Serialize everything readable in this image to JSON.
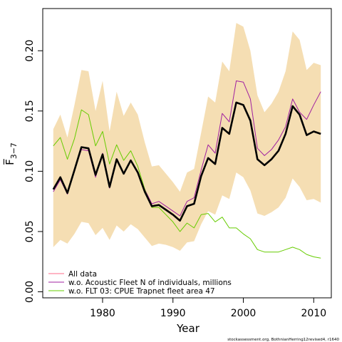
{
  "chart_data": {
    "type": "line",
    "xlabel": "Year",
    "ylabel": "F̅",
    "ylabel_sub": "3−7",
    "xlim": [
      1971.5,
      2012.5
    ],
    "ylim": [
      -0.005,
      0.235
    ],
    "x_ticks": [
      1980,
      1990,
      2000,
      2010
    ],
    "x_tick_labels": [
      "1980",
      "1990",
      "2000",
      "2010"
    ],
    "y_ticks": [
      0.0,
      0.05,
      0.1,
      0.15,
      0.2
    ],
    "y_tick_labels": [
      "0.00",
      "0.05",
      "0.10",
      "0.15",
      "0.20"
    ],
    "grid": false,
    "legend_position": "bottom-left",
    "footnote": "stockassessment.org, BothnianHerring12revised4, r1640",
    "x": [
      1973,
      1974,
      1975,
      1976,
      1977,
      1978,
      1979,
      1980,
      1981,
      1982,
      1983,
      1984,
      1985,
      1986,
      1987,
      1988,
      1989,
      1990,
      1991,
      1992,
      1993,
      1994,
      1995,
      1996,
      1997,
      1998,
      1999,
      2000,
      2001,
      2002,
      2003,
      2004,
      2005,
      2006,
      2007,
      2008,
      2009,
      2010,
      2011
    ],
    "band": {
      "color": "#f5deb3",
      "upper": [
        0.135,
        0.147,
        0.128,
        0.155,
        0.184,
        0.183,
        0.15,
        0.175,
        0.133,
        0.166,
        0.146,
        0.157,
        0.147,
        0.124,
        0.104,
        0.105,
        0.098,
        0.091,
        0.083,
        0.099,
        0.102,
        0.132,
        0.162,
        0.157,
        0.191,
        0.183,
        0.223,
        0.22,
        0.2,
        0.163,
        0.149,
        0.156,
        0.166,
        0.183,
        0.216,
        0.209,
        0.184,
        0.19,
        0.188
      ],
      "lower": [
        0.037,
        0.043,
        0.04,
        0.048,
        0.058,
        0.057,
        0.047,
        0.053,
        0.043,
        0.055,
        0.05,
        0.056,
        0.052,
        0.045,
        0.038,
        0.04,
        0.039,
        0.037,
        0.034,
        0.041,
        0.042,
        0.056,
        0.067,
        0.064,
        0.08,
        0.077,
        0.099,
        0.095,
        0.084,
        0.065,
        0.063,
        0.066,
        0.07,
        0.078,
        0.094,
        0.087,
        0.076,
        0.077,
        0.074
      ]
    },
    "series": [
      {
        "name": "All data",
        "color": "#ff6b8a",
        "width": 1,
        "values": [
          0.085,
          0.095,
          0.082,
          0.101,
          0.12,
          0.119,
          0.097,
          0.114,
          0.087,
          0.11,
          0.098,
          0.109,
          0.099,
          0.083,
          0.071,
          0.072,
          0.068,
          0.064,
          0.059,
          0.071,
          0.073,
          0.096,
          0.111,
          0.106,
          0.136,
          0.131,
          0.157,
          0.155,
          0.142,
          0.11,
          0.105,
          0.11,
          0.117,
          0.131,
          0.154,
          0.147,
          0.13,
          0.133,
          0.131
        ]
      },
      {
        "name": "w.o. Acoustic Fleet  N of individuals, millions",
        "color": "#a020a0",
        "width": 1,
        "values": [
          0.083,
          0.093,
          0.081,
          0.101,
          0.118,
          0.117,
          0.095,
          0.115,
          0.086,
          0.11,
          0.098,
          0.109,
          0.098,
          0.085,
          0.073,
          0.075,
          0.071,
          0.067,
          0.063,
          0.075,
          0.078,
          0.101,
          0.122,
          0.115,
          0.148,
          0.141,
          0.175,
          0.174,
          0.16,
          0.119,
          0.113,
          0.118,
          0.126,
          0.137,
          0.16,
          0.149,
          0.143,
          0.155,
          0.166
        ]
      },
      {
        "name": "w.o. FLT 03: CPUE Trapnet fleet area 47",
        "color": "#66cc00",
        "width": 1,
        "values": [
          0.121,
          0.128,
          0.11,
          0.127,
          0.151,
          0.147,
          0.121,
          0.133,
          0.106,
          0.122,
          0.109,
          0.117,
          0.104,
          0.085,
          0.07,
          0.07,
          0.064,
          0.058,
          0.05,
          0.057,
          0.053,
          0.064,
          0.065,
          0.058,
          0.062,
          0.053,
          0.053,
          0.048,
          0.044,
          0.035,
          0.033,
          0.033,
          0.033,
          0.035,
          0.037,
          0.035,
          0.031,
          0.029,
          0.028
        ]
      },
      {
        "name": "",
        "color": "#000000",
        "width": 2.6,
        "values": [
          0.085,
          0.095,
          0.082,
          0.101,
          0.12,
          0.119,
          0.097,
          0.114,
          0.087,
          0.11,
          0.098,
          0.109,
          0.099,
          0.083,
          0.071,
          0.072,
          0.068,
          0.064,
          0.059,
          0.071,
          0.073,
          0.096,
          0.111,
          0.106,
          0.136,
          0.131,
          0.157,
          0.155,
          0.142,
          0.11,
          0.105,
          0.11,
          0.117,
          0.131,
          0.154,
          0.147,
          0.13,
          0.133,
          0.131
        ]
      }
    ]
  }
}
